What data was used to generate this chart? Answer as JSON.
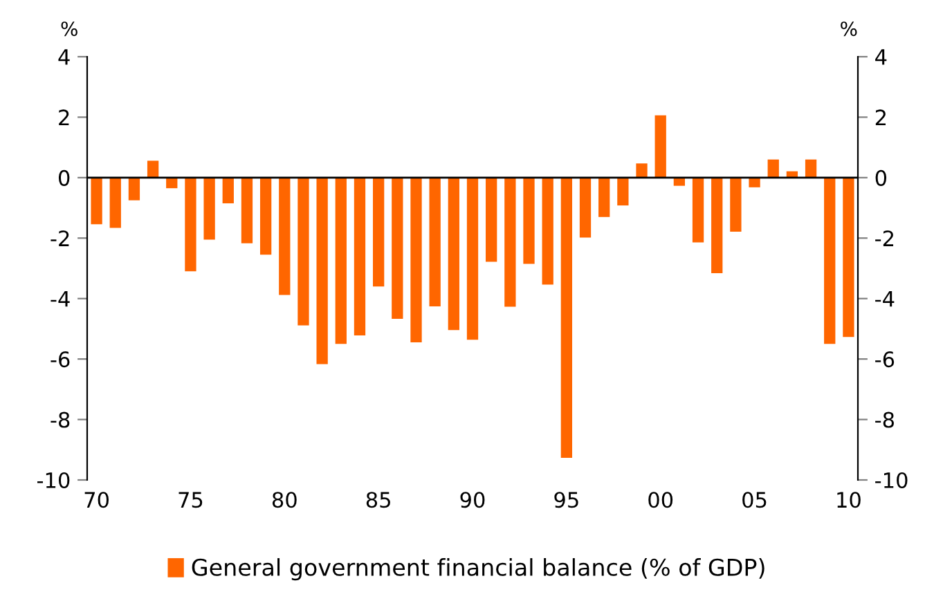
{
  "chart_data": {
    "type": "bar",
    "ylabel": "%",
    "y2label": "%",
    "x": [
      1970,
      1971,
      1972,
      1973,
      1974,
      1975,
      1976,
      1977,
      1978,
      1979,
      1980,
      1981,
      1982,
      1983,
      1984,
      1985,
      1986,
      1987,
      1988,
      1989,
      1990,
      1991,
      1992,
      1993,
      1994,
      1995,
      1996,
      1997,
      1998,
      1999,
      2000,
      2001,
      2002,
      2003,
      2004,
      2005,
      2006,
      2007,
      2008,
      2009,
      2010
    ],
    "series": [
      {
        "name": "General government financial balance (% of GDP)",
        "color": "#ff6600",
        "values": [
          -1.54,
          -1.66,
          -0.75,
          0.56,
          -0.35,
          -3.1,
          -2.05,
          -0.85,
          -2.17,
          -2.55,
          -3.88,
          -4.89,
          -6.17,
          -5.5,
          -5.22,
          -3.6,
          -4.67,
          -5.45,
          -4.26,
          -5.04,
          -5.36,
          -2.78,
          -4.27,
          -2.85,
          -3.54,
          -9.27,
          -1.98,
          -1.3,
          -0.92,
          0.47,
          2.06,
          -0.27,
          -2.14,
          -3.16,
          -1.79,
          -0.32,
          0.6,
          0.21,
          0.6,
          -5.5,
          -5.27
        ]
      }
    ],
    "xlim": [
      1969.5,
      2010.5
    ],
    "xticks": [
      {
        "value": 1970,
        "label": "70"
      },
      {
        "value": 1975,
        "label": "75"
      },
      {
        "value": 1980,
        "label": "80"
      },
      {
        "value": 1985,
        "label": "85"
      },
      {
        "value": 1990,
        "label": "90"
      },
      {
        "value": 1995,
        "label": "95"
      },
      {
        "value": 2000,
        "label": "00"
      },
      {
        "value": 2005,
        "label": "05"
      },
      {
        "value": 2010,
        "label": "10"
      }
    ],
    "ylim": [
      -10,
      4
    ],
    "yticks": [
      -10,
      -8,
      -6,
      -4,
      -2,
      0,
      2,
      4
    ],
    "y2lim": [
      -10,
      4
    ],
    "y2ticks": [
      -10,
      -8,
      -6,
      -4,
      -2,
      0,
      2,
      4
    ],
    "ref_lines": [
      {
        "axis": "y",
        "value": 0,
        "color": "#000000"
      }
    ],
    "grid": false,
    "legend": "bottom"
  }
}
